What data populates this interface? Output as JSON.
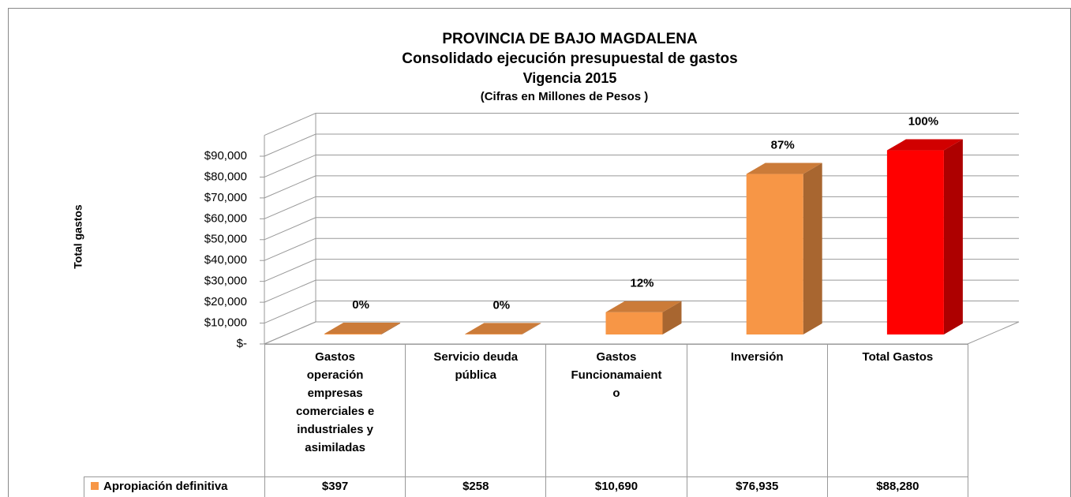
{
  "chart_data": {
    "type": "bar3d",
    "title": [
      "PROVINCIA DE BAJO MAGDALENA",
      "Consolidado  ejecución presupuestal de gastos",
      "Vigencia 2015"
    ],
    "subtitle": "(Cifras en Millones de Pesos )",
    "y_label": "Total gastos",
    "categories": [
      "Gastos operación empresas comerciales e industriales y asimiladas",
      "Servicio deuda pública",
      "Gastos Funcionamaiento",
      "Inversión",
      "Total Gastos"
    ],
    "series": [
      {
        "name": "Apropiación definitiva",
        "color": "#f79646",
        "colors": [
          "#f79646",
          "#f79646",
          "#f79646",
          "#f79646",
          "#ff0000"
        ],
        "values": [
          397,
          258,
          10690,
          76935,
          88280
        ],
        "value_labels": [
          "$397",
          "$258",
          "$10,690",
          "$76,935",
          "$88,280"
        ],
        "percent_labels": [
          "0%",
          "0%",
          "12%",
          "87%",
          "100%"
        ]
      }
    ],
    "ylim": [
      0,
      100000
    ],
    "yticks": [
      {
        "value": 0,
        "label": "$-"
      },
      {
        "value": 10000,
        "label": "$10,000"
      },
      {
        "value": 20000,
        "label": "$20,000"
      },
      {
        "value": 30000,
        "label": "$30,000"
      },
      {
        "value": 40000,
        "label": "$40,000"
      },
      {
        "value": 50000,
        "label": "$50,000"
      },
      {
        "value": 60000,
        "label": "$60,000"
      },
      {
        "value": 70000,
        "label": "$70,000"
      },
      {
        "value": 80000,
        "label": "$80,000"
      },
      {
        "value": 90000,
        "label": "$90,000"
      }
    ],
    "grid": true
  }
}
